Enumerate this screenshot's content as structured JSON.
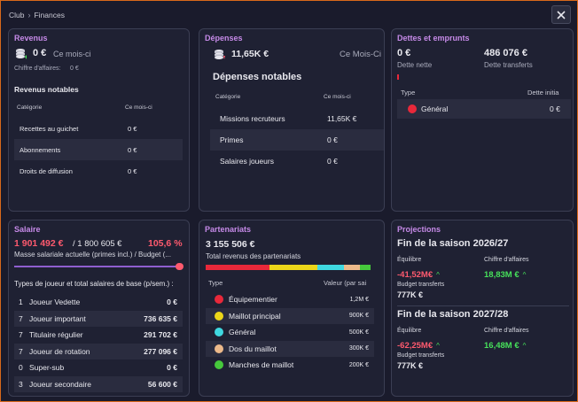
{
  "breadcrumb": {
    "root": "Club",
    "current": "Finances"
  },
  "colors": {
    "accent": "#c68ae8",
    "negative": "#ff5a6e",
    "positive": "#46e05a"
  },
  "revenus": {
    "title": "Revenus",
    "amount": "0 €",
    "period": "Ce mois-ci",
    "ca_label": "Chiffre d'affaires:",
    "ca_value": "0 €",
    "notable_title": "Revenus notables",
    "col_category": "Catégorie",
    "col_period": "Ce mois-ci",
    "rows": [
      {
        "label": "Recettes au guichet",
        "value": "0 €"
      },
      {
        "label": "Abonnements",
        "value": "0 €"
      },
      {
        "label": "Droits de diffusion",
        "value": "0 €"
      }
    ]
  },
  "depenses": {
    "title": "Dépenses",
    "amount": "11,65K €",
    "period": "Ce Mois-Ci",
    "notable_title": "Dépenses notables",
    "col_category": "Catégorie",
    "col_period": "Ce mois-ci",
    "rows": [
      {
        "label": "Missions recruteurs",
        "value": "11,65K €"
      },
      {
        "label": "Primes",
        "value": "0 €"
      },
      {
        "label": "Salaires joueurs",
        "value": "0 €"
      }
    ]
  },
  "dettes": {
    "title": "Dettes et emprunts",
    "net_value": "0 €",
    "net_label": "Dette nette",
    "transfer_value": "486 076 €",
    "transfer_label": "Dette transferts",
    "col_type": "Type",
    "col_debt": "Dette initia",
    "rows": [
      {
        "label": "Général",
        "value": "0 €",
        "color": "#e8283a"
      }
    ]
  },
  "salaire": {
    "title": "Salaire",
    "current": "1 901 492 €",
    "budget": "/ 1 800 605 €",
    "percent": "105,6 %",
    "percent_value": 105.6,
    "caption": "Masse salariale actuelle (primes incl.) / Budget (...",
    "list_title": "Types de joueur et total salaires de base (p/sem.) :",
    "rows": [
      {
        "count": "1",
        "label": "Joueur Vedette",
        "value": "0 €"
      },
      {
        "count": "7",
        "label": "Joueur important",
        "value": "736 635 €"
      },
      {
        "count": "7",
        "label": "Titulaire régulier",
        "value": "291 702 €"
      },
      {
        "count": "7",
        "label": "Joueur de rotation",
        "value": "277 096 €"
      },
      {
        "count": "0",
        "label": "Super-sub",
        "value": "0 €"
      },
      {
        "count": "3",
        "label": "Joueur secondaire",
        "value": "56 600 €"
      }
    ]
  },
  "partenariats": {
    "title": "Partenariats",
    "total": "3 155 506 €",
    "caption": "Total revenus des partenariats",
    "col_type": "Type",
    "col_value": "Valeur (par sai",
    "rows": [
      {
        "label": "Équipementier",
        "value": "1,2M €",
        "color": "#e8283a",
        "share": 0.38
      },
      {
        "label": "Maillot principal",
        "value": "900K €",
        "color": "#ecd619",
        "share": 0.285
      },
      {
        "label": "Général",
        "value": "500K €",
        "color": "#3fd8e0",
        "share": 0.158
      },
      {
        "label": "Dos du maillot",
        "value": "300K €",
        "color": "#ecb98a",
        "share": 0.095
      },
      {
        "label": "Manches de maillot",
        "value": "200K €",
        "color": "#46c83c",
        "share": 0.063
      }
    ]
  },
  "projections": {
    "title": "Projections",
    "seasons": [
      {
        "title": "Fin de la saison 2026/27",
        "eq_label": "Équilibre",
        "eq_value": "-41,52M€",
        "ca_label": "Chiffre d'affaires",
        "ca_value": "18,83M €",
        "budget_label": "Budget transferts",
        "budget_value": "777K €"
      },
      {
        "title": "Fin de la saison 2027/28",
        "eq_label": "Équilibre",
        "eq_value": "-62,25M€",
        "ca_label": "Chiffre d'affaires",
        "ca_value": "16,48M €",
        "budget_label": "Budget transferts",
        "budget_value": "777K €"
      }
    ]
  }
}
